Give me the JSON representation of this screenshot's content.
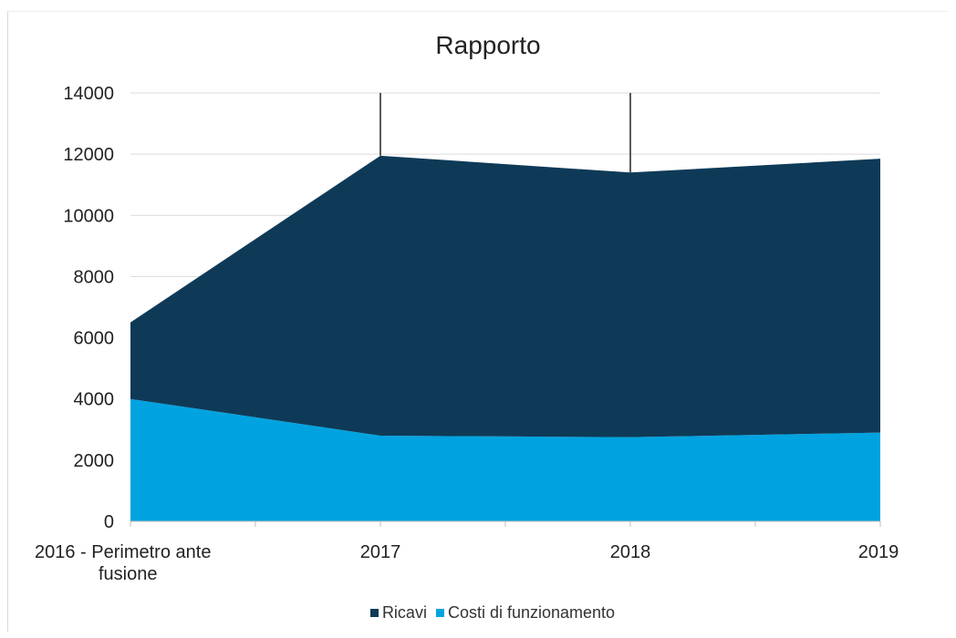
{
  "chart_data": {
    "type": "area",
    "stacked": true,
    "title": "Rapporto",
    "xlabel": "",
    "ylabel": "",
    "categories": [
      "2016 - Perimetro ante fusione",
      "2017",
      "2018",
      "2019"
    ],
    "category_lines": [
      [
        "2016 - Perimetro ante",
        "fusione"
      ],
      [
        "2017"
      ],
      [
        "2018"
      ],
      [
        "2019"
      ]
    ],
    "y_ticks": [
      "0",
      "2000",
      "4000",
      "6000",
      "8000",
      "10000",
      "12000",
      "14000"
    ],
    "ylim": [
      0,
      14000
    ],
    "grid": true,
    "legend_position": "bottom",
    "series": [
      {
        "name": "Costi di funzionamento",
        "color": "#00a3e0",
        "values": [
          4000,
          2800,
          2750,
          2900
        ]
      },
      {
        "name": "Ricavi",
        "color": "#0e3a57",
        "values": [
          2500,
          9150,
          8650,
          8950
        ]
      }
    ],
    "legend": [
      {
        "name": "Ricavi",
        "color": "#0e3a57"
      },
      {
        "name": "Costi di funzionamento",
        "color": "#00a3e0"
      }
    ]
  }
}
